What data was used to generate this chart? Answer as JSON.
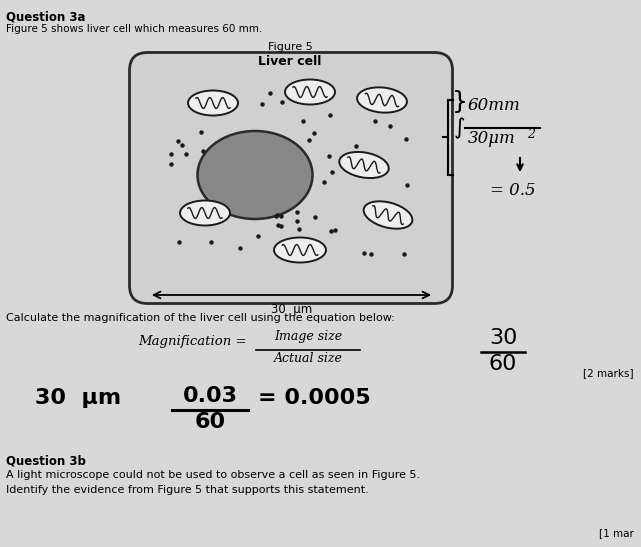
{
  "bg_color": "#d8d8d8",
  "title_q3a": "Question 3a",
  "subtitle": "Figure 5 shows liver cell which measures 60 mm.",
  "fig_label": "Figure 5",
  "fig_title": "Liver cell",
  "scale_label": "30  μm",
  "annotation_right_1": "60mm",
  "annotation_right_2": "30μm",
  "annotation_right_3": "= 0.5",
  "calc_text": "Calculate the magnification of the liver cell using the equation below:",
  "magnification_label": "Magnification =",
  "image_size_label": "Image size",
  "actual_size_label": "Actual size",
  "fraction_num": "30",
  "fraction_den": "60",
  "marks_label": "[2 marks]",
  "handwritten_size": "30  μm",
  "handwritten_frac_num": "0.03",
  "handwritten_frac_den": "60",
  "handwritten_result": "= 0.0005",
  "q3b_title": "Question 3b",
  "q3b_text1": "A light microscope could not be used to observe a cell as seen in Figure 5.",
  "q3b_text2": "Identify the evidence from Figure 5 that supports this statement.",
  "q3b_marks": "[1 mar"
}
